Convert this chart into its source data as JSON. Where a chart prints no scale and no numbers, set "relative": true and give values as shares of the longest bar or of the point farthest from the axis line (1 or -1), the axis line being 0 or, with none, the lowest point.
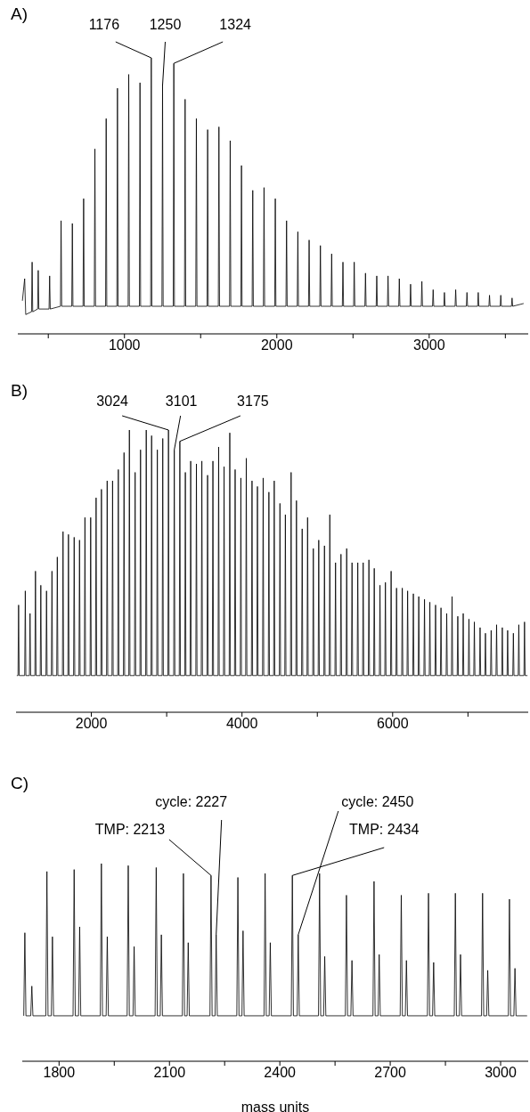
{
  "chart_data": [
    {
      "type": "line",
      "title": "A)",
      "relative": true,
      "color": "#000000",
      "xlim": [
        300,
        3650
      ],
      "xticks": [
        {
          "value": 500,
          "label": null
        },
        1000,
        {
          "value": 1500,
          "label": null
        },
        2000,
        {
          "value": 2500,
          "label": null
        },
        3000,
        {
          "value": 3500,
          "label": null
        }
      ],
      "x": [
        330,
        345,
        352,
        390,
        394,
        398,
        430,
        434,
        438,
        505,
        509,
        513,
        580,
        584,
        588,
        654,
        658,
        662,
        728,
        732,
        736,
        802,
        806,
        810,
        876,
        880,
        884,
        950,
        954,
        958,
        1024,
        1028,
        1032,
        1098,
        1102,
        1106,
        1172,
        1176,
        1180,
        1246,
        1250,
        1254,
        1320,
        1324,
        1328,
        1394,
        1398,
        1402,
        1468,
        1472,
        1476,
        1542,
        1546,
        1550,
        1616,
        1620,
        1624,
        1690,
        1694,
        1698,
        1764,
        1768,
        1772,
        1838,
        1842,
        1846,
        1912,
        1916,
        1920,
        1986,
        1990,
        1994,
        2060,
        2064,
        2068,
        2134,
        2138,
        2142,
        2208,
        2212,
        2216,
        2282,
        2286,
        2290,
        2356,
        2360,
        2364,
        2430,
        2434,
        2438,
        2504,
        2508,
        2512,
        2578,
        2582,
        2586,
        2652,
        2656,
        2660,
        2726,
        2730,
        2734,
        2800,
        2804,
        2808,
        2874,
        2878,
        2882,
        2948,
        2952,
        2956,
        3022,
        3026,
        3030,
        3096,
        3100,
        3104,
        3170,
        3174,
        3178,
        3244,
        3248,
        3252,
        3318,
        3322,
        3326,
        3392,
        3396,
        3400,
        3466,
        3470,
        3474,
        3540,
        3544,
        3548,
        3620
      ],
      "values": [
        0.12,
        0.2,
        0.07,
        0.08,
        0.26,
        0.08,
        0.09,
        0.23,
        0.09,
        0.09,
        0.21,
        0.09,
        0.1,
        0.41,
        0.1,
        0.1,
        0.4,
        0.1,
        0.1,
        0.49,
        0.1,
        0.1,
        0.67,
        0.1,
        0.1,
        0.78,
        0.1,
        0.1,
        0.89,
        0.1,
        0.1,
        0.94,
        0.1,
        0.1,
        0.91,
        0.1,
        0.1,
        1,
        0.1,
        0.1,
        0.9,
        0.1,
        0.1,
        0.98,
        0.1,
        0.1,
        0.85,
        0.1,
        0.1,
        0.78,
        0.1,
        0.1,
        0.74,
        0.1,
        0.1,
        0.75,
        0.1,
        0.1,
        0.7,
        0.1,
        0.1,
        0.61,
        0.1,
        0.1,
        0.52,
        0.1,
        0.1,
        0.53,
        0.1,
        0.1,
        0.49,
        0.1,
        0.1,
        0.41,
        0.1,
        0.1,
        0.37,
        0.1,
        0.1,
        0.34,
        0.1,
        0.1,
        0.32,
        0.1,
        0.1,
        0.29,
        0.1,
        0.1,
        0.26,
        0.1,
        0.1,
        0.26,
        0.1,
        0.1,
        0.22,
        0.1,
        0.1,
        0.21,
        0.1,
        0.1,
        0.21,
        0.1,
        0.1,
        0.2,
        0.1,
        0.1,
        0.18,
        0.1,
        0.1,
        0.19,
        0.1,
        0.1,
        0.16,
        0.1,
        0.1,
        0.15,
        0.1,
        0.1,
        0.16,
        0.1,
        0.1,
        0.15,
        0.1,
        0.1,
        0.15,
        0.1,
        0.1,
        0.14,
        0.1,
        0.1,
        0.14,
        0.1,
        0.1,
        0.13,
        0.1,
        0.11
      ],
      "annotations": [
        {
          "text": "1176",
          "x": 1176,
          "y": 1
        },
        {
          "text": "1250",
          "x": 1250,
          "y": 0.9
        },
        {
          "text": "1324",
          "x": 1324,
          "y": 0.98
        }
      ]
    },
    {
      "type": "line",
      "title": "B)",
      "relative": true,
      "color": "#000000",
      "xlim": [
        1000,
        7800
      ],
      "xticks": [
        2000,
        {
          "value": 3000,
          "label": null
        },
        4000,
        {
          "value": 5000,
          "label": null
        },
        6000,
        {
          "value": 7000,
          "label": null
        }
      ],
      "x": [
        1010,
        1026,
        1034,
        1042,
        1115,
        1123,
        1131,
        1178,
        1186,
        1194,
        1250,
        1258,
        1266,
        1321,
        1329,
        1337,
        1397,
        1405,
        1413,
        1469,
        1477,
        1485,
        1540,
        1548,
        1556,
        1616,
        1624,
        1632,
        1688,
        1696,
        1704,
        1764,
        1772,
        1780,
        1835,
        1843,
        1851,
        1907,
        1915,
        1923,
        1983,
        1991,
        1999,
        2055,
        2063,
        2071,
        2126,
        2134,
        2142,
        2202,
        2210,
        2218,
        2274,
        2282,
        2290,
        2350,
        2358,
        2366,
        2426,
        2434,
        2442,
        2497,
        2505,
        2513,
        2573,
        2581,
        2589,
        2645,
        2653,
        2661,
        2721,
        2729,
        2737,
        2792,
        2800,
        2808,
        2868,
        2876,
        2884,
        2940,
        2948,
        2956,
        3016,
        3024,
        3032,
        3093,
        3101,
        3109,
        3167,
        3175,
        3183,
        3240,
        3248,
        3256,
        3311,
        3319,
        3327,
        3387,
        3395,
        3403,
        3459,
        3467,
        3475,
        3535,
        3543,
        3551,
        3606,
        3614,
        3622,
        3682,
        3690,
        3698,
        3754,
        3762,
        3770,
        3830,
        3838,
        3846,
        3901,
        3909,
        3917,
        3977,
        3985,
        3993,
        4049,
        4057,
        4065,
        4125,
        4133,
        4141,
        4197,
        4205,
        4213,
        4273,
        4281,
        4289,
        4349,
        4357,
        4365,
        4420,
        4428,
        4436,
        4496,
        4504,
        4512,
        4568,
        4576,
        4584,
        4644,
        4652,
        4660,
        4715,
        4723,
        4731,
        4791,
        4799,
        4807,
        4863,
        4871,
        4879,
        4939,
        4947,
        4955,
        5011,
        5019,
        5027,
        5087,
        5095,
        5103,
        5158,
        5166,
        5174,
        5234,
        5242,
        5250,
        5306,
        5314,
        5322,
        5382,
        5390,
        5398,
        5453,
        5461,
        5469,
        5529,
        5537,
        5545,
        5601,
        5609,
        5617,
        5677,
        5685,
        5693,
        5748,
        5756,
        5764,
        5824,
        5832,
        5840,
        5896,
        5904,
        5912,
        5972,
        5980,
        5988,
        6044,
        6052,
        6060,
        6120,
        6128,
        6136,
        6191,
        6199,
        6207,
        6267,
        6275,
        6283,
        6339,
        6347,
        6355,
        6415,
        6423,
        6431,
        6486,
        6494,
        6502,
        6562,
        6570,
        6578,
        6634,
        6642,
        6650,
        6710,
        6718,
        6726,
        6781,
        6789,
        6797,
        6857,
        6865,
        6873,
        6929,
        6937,
        6945,
        7005,
        7013,
        7021,
        7077,
        7085,
        7093,
        7153,
        7161,
        7169,
        7224,
        7232,
        7240,
        7300,
        7308,
        7316,
        7372,
        7380,
        7388,
        7448,
        7456,
        7464,
        7519,
        7527,
        7535,
        7595,
        7603,
        7611,
        7667,
        7675,
        7683,
        7743,
        7751,
        7759,
        7790
      ],
      "values": [
        0.13,
        0.13,
        0.38,
        0.13,
        0.13,
        0.43,
        0.13,
        0.13,
        0.35,
        0.13,
        0.13,
        0.5,
        0.13,
        0.13,
        0.45,
        0.13,
        0.13,
        0.43,
        0.13,
        0.13,
        0.5,
        0.13,
        0.13,
        0.55,
        0.13,
        0.13,
        0.64,
        0.13,
        0.13,
        0.63,
        0.13,
        0.13,
        0.62,
        0.13,
        0.13,
        0.61,
        0.13,
        0.13,
        0.69,
        0.13,
        0.13,
        0.69,
        0.13,
        0.13,
        0.76,
        0.13,
        0.13,
        0.79,
        0.13,
        0.13,
        0.82,
        0.13,
        0.13,
        0.82,
        0.13,
        0.13,
        0.86,
        0.13,
        0.13,
        0.92,
        0.13,
        0.13,
        1,
        0.13,
        0.13,
        0.85,
        0.13,
        0.13,
        0.93,
        0.13,
        0.13,
        1,
        0.13,
        0.13,
        0.98,
        0.13,
        0.13,
        0.93,
        0.13,
        0.13,
        0.97,
        0.13,
        0.13,
        1,
        0.13,
        0.13,
        0.93,
        0.13,
        0.13,
        0.96,
        0.13,
        0.13,
        0.85,
        0.13,
        0.13,
        0.89,
        0.13,
        0.13,
        0.88,
        0.13,
        0.13,
        0.89,
        0.13,
        0.13,
        0.84,
        0.13,
        0.13,
        0.89,
        0.13,
        0.13,
        0.94,
        0.13,
        0.13,
        0.87,
        0.13,
        0.13,
        0.99,
        0.13,
        0.13,
        0.86,
        0.13,
        0.13,
        0.83,
        0.13,
        0.13,
        0.9,
        0.13,
        0.13,
        0.82,
        0.13,
        0.13,
        0.8,
        0.13,
        0.13,
        0.83,
        0.13,
        0.13,
        0.78,
        0.13,
        0.13,
        0.82,
        0.13,
        0.13,
        0.74,
        0.13,
        0.13,
        0.7,
        0.13,
        0.13,
        0.85,
        0.13,
        0.13,
        0.75,
        0.13,
        0.13,
        0.65,
        0.13,
        0.13,
        0.69,
        0.13,
        0.13,
        0.58,
        0.13,
        0.13,
        0.61,
        0.13,
        0.13,
        0.59,
        0.13,
        0.13,
        0.7,
        0.13,
        0.13,
        0.53,
        0.13,
        0.13,
        0.56,
        0.13,
        0.13,
        0.58,
        0.13,
        0.13,
        0.53,
        0.13,
        0.13,
        0.53,
        0.13,
        0.13,
        0.53,
        0.13,
        0.13,
        0.54,
        0.13,
        0.13,
        0.51,
        0.13,
        0.13,
        0.45,
        0.13,
        0.13,
        0.46,
        0.13,
        0.13,
        0.5,
        0.13,
        0.13,
        0.44,
        0.13,
        0.13,
        0.44,
        0.13,
        0.13,
        0.43,
        0.13,
        0.13,
        0.42,
        0.13,
        0.13,
        0.41,
        0.13,
        0.13,
        0.4,
        0.13,
        0.13,
        0.39,
        0.13,
        0.13,
        0.38,
        0.13,
        0.13,
        0.37,
        0.13,
        0.13,
        0.35,
        0.13,
        0.13,
        0.41,
        0.13,
        0.13,
        0.34,
        0.13,
        0.13,
        0.35,
        0.13,
        0.13,
        0.33,
        0.13,
        0.13,
        0.32,
        0.13,
        0.13,
        0.3,
        0.13,
        0.13,
        0.28,
        0.13,
        0.13,
        0.29,
        0.13,
        0.13,
        0.31,
        0.13,
        0.13,
        0.3,
        0.13,
        0.13,
        0.29,
        0.13,
        0.13,
        0.28,
        0.13,
        0.13,
        0.31,
        0.13,
        0.13,
        0.32,
        0.13,
        0.13
      ],
      "annotations": [
        {
          "text": "3024",
          "x": 3024,
          "y": 1
        },
        {
          "text": "3101",
          "x": 3101,
          "y": 0.93
        },
        {
          "text": "3175",
          "x": 3175,
          "y": 0.96
        }
      ]
    },
    {
      "type": "line",
      "title": "C)",
      "relative": true,
      "color": "#000000",
      "xlim": [
        1700,
        3075
      ],
      "xlabel": "mass units",
      "xticks": [
        1800,
        {
          "value": 1950,
          "label": null
        },
        2100,
        {
          "value": 2250,
          "label": null
        },
        2400,
        {
          "value": 2550,
          "label": null
        },
        2700,
        {
          "value": 2850,
          "label": null
        },
        3000
      ],
      "x": [
        1704,
        1707,
        1710,
        1723,
        1726,
        1729,
        1764,
        1767,
        1770,
        1779,
        1782,
        1785,
        1838,
        1841,
        1844,
        1853,
        1856,
        1859,
        1912,
        1915,
        1918,
        1928,
        1931,
        1934,
        1985,
        1988,
        1991,
        2001,
        2004,
        2007,
        2061,
        2064,
        2067,
        2075,
        2078,
        2081,
        2135,
        2138,
        2141,
        2148,
        2151,
        2154,
        2210,
        2213,
        2216,
        2224,
        2227,
        2230,
        2283,
        2286,
        2289,
        2297,
        2300,
        2303,
        2357,
        2360,
        2363,
        2371,
        2374,
        2377,
        2431,
        2434,
        2437,
        2447,
        2450,
        2453,
        2505,
        2508,
        2511,
        2519,
        2522,
        2525,
        2578,
        2581,
        2584,
        2593,
        2596,
        2599,
        2653,
        2656,
        2659,
        2667,
        2670,
        2673,
        2727,
        2730,
        2733,
        2741,
        2744,
        2747,
        2801,
        2804,
        2807,
        2815,
        2818,
        2821,
        2874,
        2877,
        2880,
        2888,
        2891,
        2894,
        2948,
        2951,
        2954,
        2962,
        2965,
        2968,
        3021,
        3024,
        3027,
        3036,
        3039,
        3042,
        3072
      ],
      "values": [
        0.23,
        0.65,
        0.23,
        0.23,
        0.38,
        0.23,
        0.23,
        0.96,
        0.23,
        0.23,
        0.63,
        0.23,
        0.23,
        0.97,
        0.23,
        0.23,
        0.68,
        0.23,
        0.23,
        1,
        0.23,
        0.23,
        0.63,
        0.23,
        0.23,
        0.99,
        0.23,
        0.23,
        0.58,
        0.23,
        0.23,
        0.98,
        0.23,
        0.23,
        0.64,
        0.23,
        0.23,
        0.95,
        0.23,
        0.23,
        0.6,
        0.23,
        0.23,
        0.94,
        0.23,
        0.23,
        0.64,
        0.23,
        0.23,
        0.93,
        0.23,
        0.23,
        0.66,
        0.23,
        0.23,
        0.95,
        0.23,
        0.23,
        0.6,
        0.23,
        0.23,
        0.94,
        0.23,
        0.23,
        0.64,
        0.23,
        0.23,
        0.95,
        0.23,
        0.23,
        0.53,
        0.23,
        0.23,
        0.84,
        0.23,
        0.23,
        0.51,
        0.23,
        0.23,
        0.91,
        0.23,
        0.23,
        0.54,
        0.23,
        0.23,
        0.84,
        0.23,
        0.23,
        0.51,
        0.23,
        0.23,
        0.85,
        0.23,
        0.23,
        0.5,
        0.23,
        0.23,
        0.85,
        0.23,
        0.23,
        0.54,
        0.23,
        0.23,
        0.85,
        0.23,
        0.23,
        0.46,
        0.23,
        0.23,
        0.82,
        0.23,
        0.23,
        0.47,
        0.23,
        0.23
      ],
      "annotations": [
        {
          "text": "TMP: 2213",
          "x": 2213,
          "y": 0.94
        },
        {
          "text": "cycle: 2227",
          "x": 2227,
          "y": 0.64
        },
        {
          "text": "cycle: 2450",
          "x": 2450,
          "y": 0.64
        },
        {
          "text": "TMP: 2434",
          "x": 2434,
          "y": 0.94
        }
      ]
    }
  ]
}
